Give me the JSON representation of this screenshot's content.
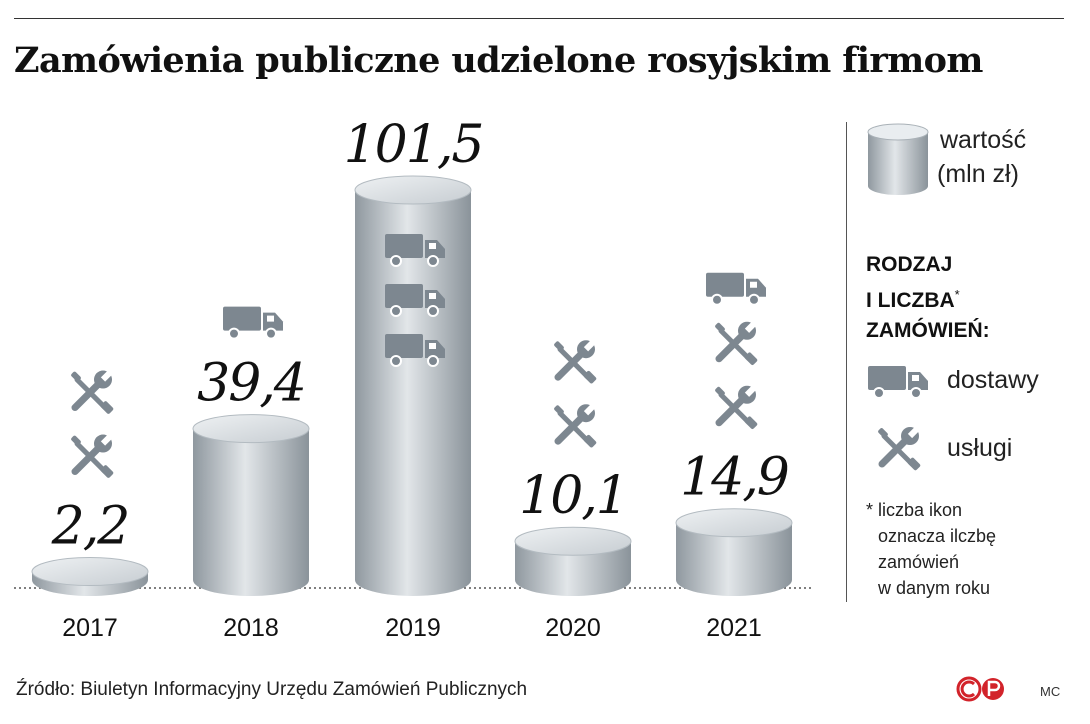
{
  "title": "Zamówienia publiczne udzielone rosyjskim firmom",
  "chart_data": {
    "type": "bar",
    "categories": [
      "2017",
      "2018",
      "2019",
      "2020",
      "2021"
    ],
    "values": [
      2.2,
      39.4,
      101.5,
      10.1,
      14.9
    ],
    "value_labels": [
      "2,2",
      "39,4",
      "101,5",
      "10,1",
      "14,9"
    ],
    "deliveries": [
      0,
      1,
      3,
      0,
      1
    ],
    "services": [
      2,
      0,
      0,
      2,
      2
    ],
    "value_legend_line1": "wartość",
    "value_legend_line2": "(mln zł)"
  },
  "legend": {
    "heading_line1": "RODZAJ",
    "heading_line2": "I LICZBA",
    "heading_star": "*",
    "heading_line3": "ZAMÓWIEŃ:",
    "deliveries_label": "dostawy",
    "services_label": "usługi",
    "note_line1": "* liczba ikon",
    "note_line2": "oznacza ilczbę",
    "note_line3": "zamówień",
    "note_line4": "w danym roku"
  },
  "source": "Źródło: Biuletyn Informacyjny Urzędu Zamówień Publicznych",
  "signature": "MC",
  "colors": {
    "cylinder_dark": "#8e979e",
    "cylinder_light": "#e3e7ea",
    "icon": "#7d8790",
    "text": "#111111"
  }
}
